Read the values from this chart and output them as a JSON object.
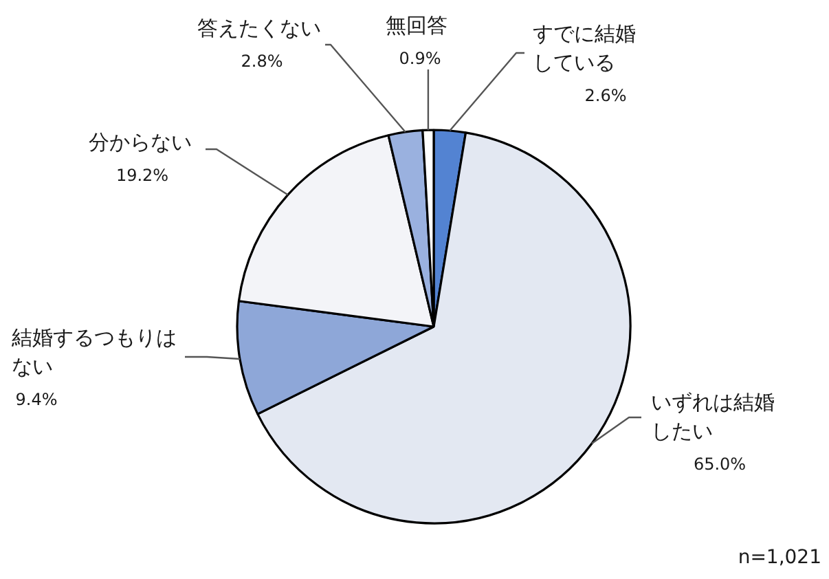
{
  "chart_data": {
    "type": "pie",
    "categories": [
      "すでに結婚している",
      "いずれは結婚したい",
      "結婚するつもりはない",
      "分からない",
      "答えたくない",
      "無回答"
    ],
    "values": [
      2.6,
      65.0,
      9.4,
      19.2,
      2.8,
      0.9
    ],
    "value_labels": [
      "2.6%",
      "65.0%",
      "9.4%",
      "19.2%",
      "2.8%",
      "0.9%"
    ],
    "colors": [
      "#5383d2",
      "#e3e8f2",
      "#8ea7d8",
      "#f3f4f8",
      "#9ab1df",
      "#ffffff"
    ],
    "annotations": [
      "n=1,021"
    ]
  }
}
